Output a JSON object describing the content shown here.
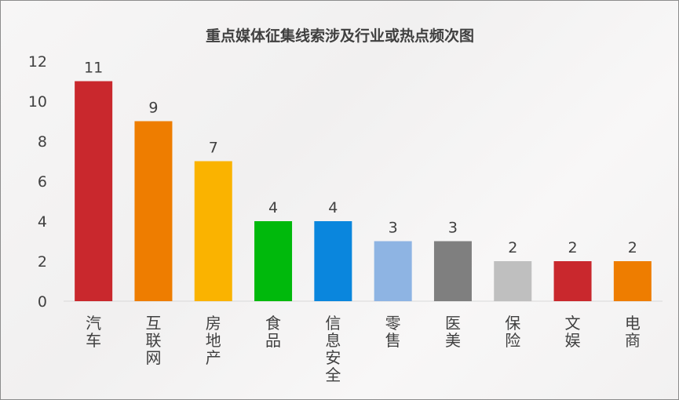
{
  "chart_data": {
    "type": "bar",
    "title": "重点媒体征集线索涉及行业或热点频次图",
    "xlabel": "",
    "ylabel": "",
    "ylim": [
      0,
      12
    ],
    "y_ticks": [
      "0",
      "2",
      "4",
      "6",
      "8",
      "10",
      "12"
    ],
    "grid": false,
    "legend": "none",
    "categories": [
      "汽车",
      "互联网",
      "房地产",
      "食品",
      "信息安全",
      "零售",
      "医美",
      "保险",
      "文娱",
      "电商"
    ],
    "values": [
      11,
      9,
      7,
      4,
      4,
      3,
      3,
      2,
      2,
      2
    ],
    "data_labels": [
      "11",
      "9",
      "7",
      "4",
      "4",
      "3",
      "3",
      "2",
      "2",
      "2"
    ],
    "colors": [
      "#c9282d",
      "#ee7d00",
      "#fab300",
      "#00b90c",
      "#0a86dd",
      "#8eb4e3",
      "#7f7f7f",
      "#bfbfbf",
      "#c9282d",
      "#ee7d00"
    ]
  }
}
